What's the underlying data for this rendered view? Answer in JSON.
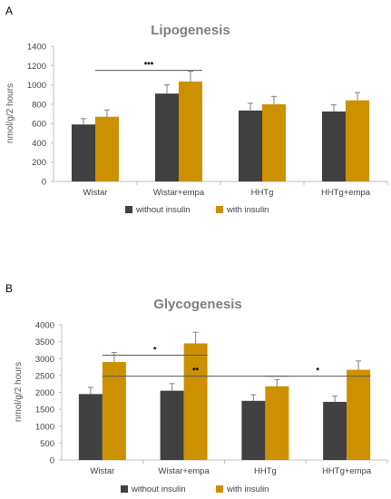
{
  "panel_a_letter": "A",
  "panel_b_letter": "B",
  "chart_data": [
    {
      "type": "bar",
      "title": "Lipogenesis",
      "ylabel": "nmol/g/2 hours",
      "xlabel": "",
      "ylim": [
        0,
        1400
      ],
      "yticks": [
        0,
        200,
        400,
        600,
        800,
        1000,
        1200,
        1400
      ],
      "categories": [
        "Wistar",
        "Wistar+empa",
        "HHTg",
        "HHTg+empa"
      ],
      "series": [
        {
          "name": "without insulin",
          "color": "#404040",
          "values": [
            590,
            910,
            735,
            725
          ],
          "errors": [
            60,
            90,
            75,
            70
          ]
        },
        {
          "name": "with insulin",
          "color": "#cc9000",
          "values": [
            670,
            1035,
            800,
            840
          ],
          "errors": [
            70,
            105,
            80,
            80
          ]
        }
      ],
      "significance": [
        {
          "label": "***",
          "from": "Wistar",
          "to": "Wistar+empa",
          "y": 1150
        }
      ],
      "legend": "bottom",
      "grid": false
    },
    {
      "type": "bar",
      "title": "Glycogenesis",
      "ylabel": "nmol/g/2 hours",
      "xlabel": "",
      "ylim": [
        0,
        4000
      ],
      "yticks": [
        0,
        500,
        1000,
        1500,
        2000,
        2500,
        3000,
        3500,
        4000
      ],
      "categories": [
        "Wistar",
        "Wistar+empa",
        "HHTg",
        "HHTg+empa"
      ],
      "series": [
        {
          "name": "without insulin",
          "color": "#404040",
          "values": [
            1950,
            2050,
            1750,
            1720
          ],
          "errors": [
            200,
            210,
            180,
            170
          ]
        },
        {
          "name": "with insulin",
          "color": "#cc9000",
          "values": [
            2900,
            3450,
            2180,
            2670
          ],
          "errors": [
            280,
            330,
            200,
            260
          ]
        }
      ],
      "significance": [
        {
          "label": "*",
          "from": "Wistar",
          "to": "Wistar+empa",
          "y": 3100
        },
        {
          "label": "**",
          "from": "Wistar",
          "to": "HHTg",
          "y": 2480
        },
        {
          "label": "*",
          "from": "HHTg",
          "to": "HHTg+empa",
          "y": 2480
        }
      ],
      "legend": "bottom",
      "grid": false
    }
  ]
}
